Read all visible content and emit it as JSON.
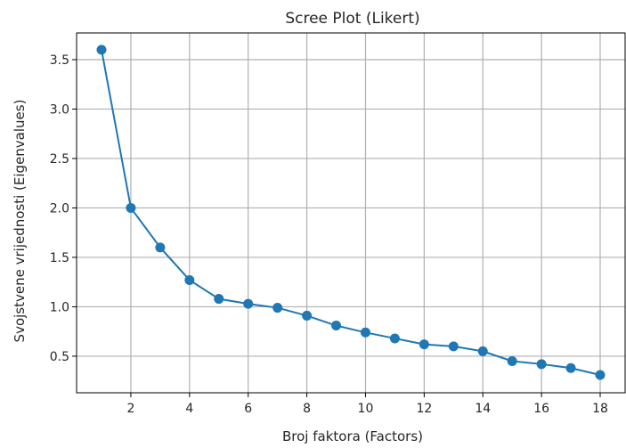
{
  "chart_data": {
    "type": "line",
    "title": "Scree Plot (Likert)",
    "xlabel": "Broj faktora (Factors)",
    "ylabel": "Svojstvene vrijednosti (Eigenvalues)",
    "x": [
      1,
      2,
      3,
      4,
      5,
      6,
      7,
      8,
      9,
      10,
      11,
      12,
      13,
      14,
      15,
      16,
      17,
      18
    ],
    "series": [
      {
        "values": [
          3.6,
          2.0,
          1.6,
          1.27,
          1.08,
          1.03,
          0.99,
          0.91,
          0.81,
          0.74,
          0.68,
          0.62,
          0.6,
          0.55,
          0.45,
          0.42,
          0.38,
          0.31
        ]
      }
    ],
    "xlim": [
      0.15,
      18.85
    ],
    "ylim": [
      0.13,
      3.77
    ],
    "xticks": [
      2,
      4,
      6,
      8,
      10,
      12,
      14,
      16,
      18
    ],
    "yticks": [
      0.5,
      1.0,
      1.5,
      2.0,
      2.5,
      3.0,
      3.5
    ],
    "xtick_labels": [
      "2",
      "4",
      "6",
      "8",
      "10",
      "12",
      "14",
      "16",
      "18"
    ],
    "ytick_labels": [
      "0.5",
      "1.0",
      "1.5",
      "2.0",
      "2.5",
      "3.0",
      "3.5"
    ],
    "grid": true,
    "line_color": "#1f77b4",
    "marker": "circle"
  }
}
